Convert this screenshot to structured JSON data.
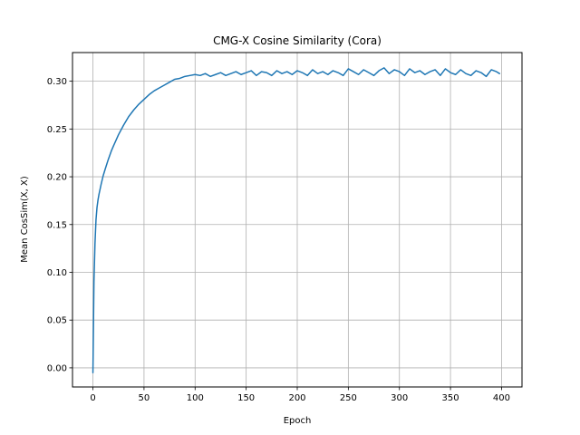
{
  "chart_data": {
    "type": "line",
    "title": "CMG-X Cosine Similarity (Cora)",
    "xlabel": "Epoch",
    "ylabel": "Mean CosSim(X, X)",
    "xlim": [
      -20,
      420
    ],
    "ylim": [
      -0.02,
      0.33
    ],
    "xticks": [
      0,
      50,
      100,
      150,
      200,
      250,
      300,
      350,
      400
    ],
    "yticks": [
      0.0,
      0.05,
      0.1,
      0.15,
      0.2,
      0.25,
      0.3
    ],
    "ytick_labels": [
      "0.00",
      "0.05",
      "0.10",
      "0.15",
      "0.20",
      "0.25",
      "0.30"
    ],
    "grid": true,
    "legend": "none",
    "series": [
      {
        "color": "#1f77b4",
        "x": [
          0,
          1,
          2,
          3,
          4,
          5,
          6,
          8,
          10,
          12,
          15,
          18,
          20,
          25,
          30,
          35,
          40,
          45,
          50,
          55,
          60,
          65,
          70,
          75,
          80,
          85,
          90,
          95,
          100,
          105,
          110,
          115,
          120,
          125,
          130,
          135,
          140,
          145,
          150,
          155,
          160,
          165,
          170,
          175,
          180,
          185,
          190,
          195,
          200,
          205,
          210,
          215,
          220,
          225,
          230,
          235,
          240,
          245,
          250,
          255,
          260,
          265,
          270,
          275,
          280,
          285,
          290,
          295,
          300,
          305,
          310,
          315,
          320,
          325,
          330,
          335,
          340,
          345,
          350,
          355,
          360,
          365,
          370,
          375,
          380,
          385,
          390,
          395,
          398
        ],
        "y": [
          -0.005,
          0.09,
          0.13,
          0.155,
          0.168,
          0.176,
          0.182,
          0.192,
          0.201,
          0.208,
          0.218,
          0.227,
          0.232,
          0.244,
          0.254,
          0.263,
          0.27,
          0.276,
          0.281,
          0.286,
          0.29,
          0.293,
          0.296,
          0.299,
          0.302,
          0.303,
          0.305,
          0.306,
          0.307,
          0.306,
          0.308,
          0.305,
          0.307,
          0.309,
          0.306,
          0.308,
          0.31,
          0.307,
          0.309,
          0.311,
          0.306,
          0.31,
          0.309,
          0.306,
          0.311,
          0.308,
          0.31,
          0.307,
          0.311,
          0.309,
          0.306,
          0.312,
          0.308,
          0.31,
          0.307,
          0.311,
          0.309,
          0.306,
          0.313,
          0.31,
          0.307,
          0.312,
          0.309,
          0.306,
          0.311,
          0.314,
          0.308,
          0.312,
          0.31,
          0.306,
          0.313,
          0.309,
          0.311,
          0.307,
          0.31,
          0.312,
          0.306,
          0.313,
          0.309,
          0.307,
          0.312,
          0.308,
          0.306,
          0.311,
          0.309,
          0.305,
          0.312,
          0.31,
          0.308
        ]
      }
    ]
  }
}
